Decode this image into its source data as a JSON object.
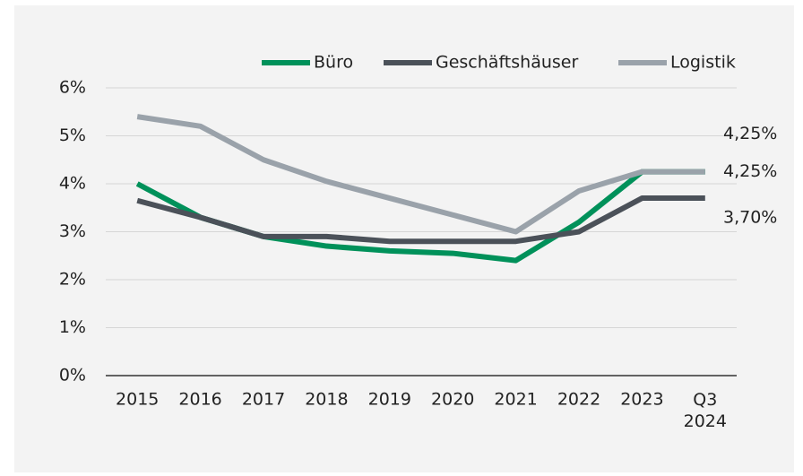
{
  "chart_data": {
    "type": "line",
    "categories": [
      "2015",
      "2016",
      "2017",
      "2018",
      "2019",
      "2020",
      "2021",
      "2022",
      "2023",
      "Q3 2024"
    ],
    "series": [
      {
        "name": "Büro",
        "color": "#00915a",
        "values": [
          4.0,
          3.3,
          2.9,
          2.7,
          2.6,
          2.55,
          2.4,
          3.2,
          4.25,
          4.25
        ],
        "value_labels": [
          null,
          null,
          null,
          null,
          null,
          null,
          null,
          null,
          null,
          "4,25%"
        ]
      },
      {
        "name": "Geschäftshäuser",
        "color": "#4b5159",
        "values": [
          3.65,
          3.3,
          2.9,
          2.9,
          2.8,
          2.8,
          2.8,
          3.0,
          3.7,
          3.7
        ],
        "value_labels": [
          null,
          null,
          null,
          null,
          null,
          null,
          null,
          null,
          null,
          "3,70%"
        ]
      },
      {
        "name": "Logistik",
        "color": "#9aa2aa",
        "values": [
          5.4,
          5.2,
          4.5,
          4.05,
          3.7,
          3.35,
          3.0,
          3.85,
          4.25,
          4.25
        ],
        "value_labels": [
          null,
          null,
          null,
          null,
          null,
          null,
          null,
          null,
          null,
          "4,25%"
        ]
      }
    ],
    "ylim": [
      0,
      6
    ],
    "yticks": [
      {
        "value": 0,
        "label": "0%"
      },
      {
        "value": 1,
        "label": "1%"
      },
      {
        "value": 2,
        "label": "2%"
      },
      {
        "value": 3,
        "label": "3%"
      },
      {
        "value": 4,
        "label": "4%"
      },
      {
        "value": 5,
        "label": "5%"
      },
      {
        "value": 6,
        "label": "6%"
      }
    ],
    "grid": true,
    "legend": "top-right"
  }
}
